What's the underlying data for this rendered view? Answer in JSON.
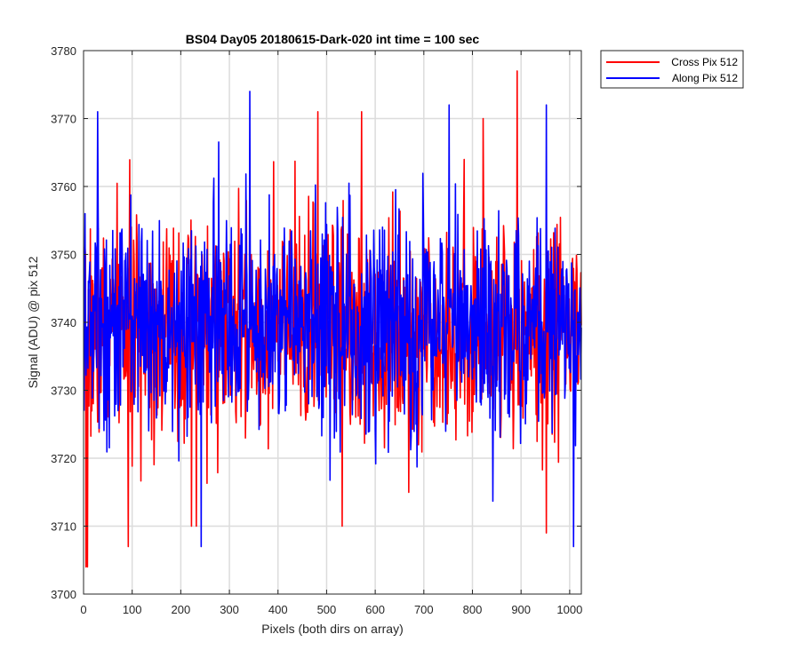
{
  "chart_data": {
    "type": "line",
    "title": "BS04 Day05 20180615-Dark-020 int time = 100 sec",
    "xlabel": "Pixels (both dirs on array)",
    "ylabel": "Signal (ADU) @ pix 512",
    "xlim": [
      0,
      1024
    ],
    "ylim": [
      3700,
      3780
    ],
    "xticks": [
      0,
      100,
      200,
      300,
      400,
      500,
      600,
      700,
      800,
      900,
      1000
    ],
    "yticks": [
      3700,
      3710,
      3720,
      3730,
      3740,
      3750,
      3760,
      3770,
      3780
    ],
    "grid": true,
    "legend_position": "outside-top-right",
    "n_points": 1024,
    "series": [
      {
        "name": "Cross Pix 512",
        "color": "#ff0000",
        "mean": 3739,
        "std": 8,
        "seed": 7,
        "notable_points": [
          [
            4,
            3704
          ],
          [
            7,
            3704
          ],
          [
            91,
            3707
          ],
          [
            221,
            3710
          ],
          [
            231,
            3710
          ],
          [
            481,
            3771
          ],
          [
            531,
            3710
          ],
          [
            571,
            3771
          ],
          [
            821,
            3770
          ],
          [
            891,
            3777
          ],
          [
            951,
            3709
          ]
        ]
      },
      {
        "name": "Along Pix 512",
        "color": "#0000ff",
        "mean": 3740,
        "std": 8,
        "seed": 13,
        "notable_points": [
          [
            2,
            3756
          ],
          [
            28,
            3771
          ],
          [
            241,
            3707
          ],
          [
            341,
            3774
          ],
          [
            751,
            3772
          ],
          [
            951,
            3772
          ],
          [
            1007,
            3707
          ]
        ]
      }
    ]
  }
}
